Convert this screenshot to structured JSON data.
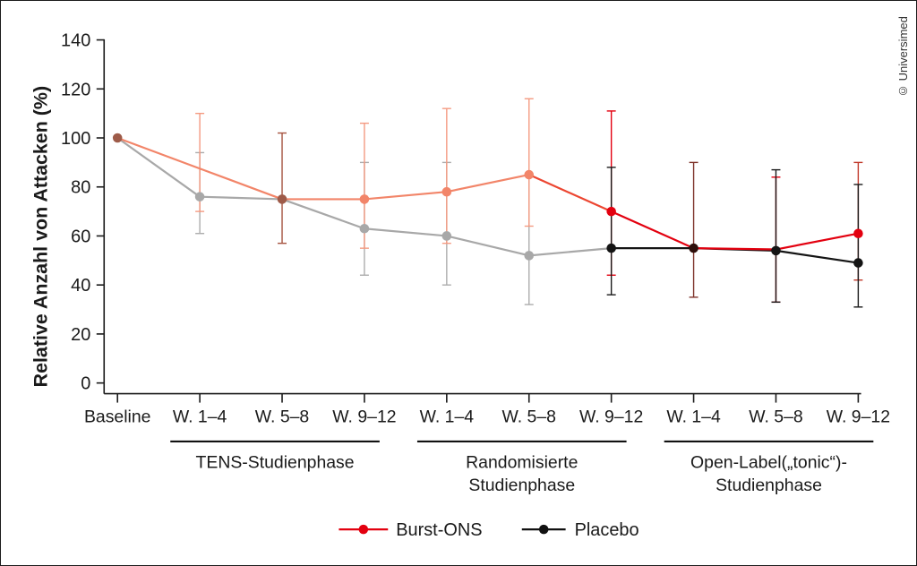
{
  "frame": {
    "copyright": "© Universimed",
    "background": "#ffffff",
    "border_color": "#1c1c1c"
  },
  "chart_data": {
    "type": "line",
    "title": "",
    "ylabel": "Relative Anzahl von Attacken (%)",
    "xlabel": "",
    "ylim": [
      0,
      140
    ],
    "yticks": [
      0,
      20,
      40,
      60,
      80,
      100,
      120,
      140
    ],
    "grid": false,
    "legend_position": "bottom",
    "axis_color": "#1a1a1a",
    "categories": [
      "Baseline",
      "W. 1–4",
      "W. 5–8",
      "W. 9–12",
      "W. 1–4",
      "W. 5–8",
      "W. 9–12",
      "W. 1–4",
      "W. 5–8",
      "W. 9–12"
    ],
    "phases": [
      {
        "label_lines": [
          "TENS-Studienphase"
        ],
        "from": 1,
        "to": 3
      },
      {
        "label_lines": [
          "Randomisierte",
          "Studienphase"
        ],
        "from": 4,
        "to": 6
      },
      {
        "label_lines": [
          "Open-Label(„tonic“)-",
          "Studienphase"
        ],
        "from": 7,
        "to": 9
      }
    ],
    "series": [
      {
        "name": "Burst-ONS",
        "legend_color": "#e3000f",
        "values": [
          100,
          87.5,
          75,
          75,
          78,
          85,
          70,
          55,
          54.5,
          61
        ],
        "err_low": [
          null,
          70,
          57,
          55,
          57,
          64,
          44,
          35,
          33,
          42
        ],
        "err_high": [
          null,
          110,
          102,
          106,
          112,
          116,
          111,
          90,
          84,
          90
        ],
        "marker_colors": [
          "#9e5b49",
          null,
          "#9e5b49",
          "#f28569",
          "#f28569",
          "#f28569",
          "#e3000f",
          null,
          null,
          "#e3000f"
        ],
        "err_colors": [
          null,
          "#f49a81",
          "#a5523e",
          "#f49a81",
          "#f49a81",
          "#f49a81",
          "#e3000f",
          "#7e332a",
          "#e3000f",
          "#c1392b"
        ],
        "segment_colors": [
          "#f28569",
          "#f28569",
          "#f28569",
          "#f28569",
          "#f28569",
          "#ec4631",
          "#e3000f",
          "#e3000f",
          "#e3000f"
        ]
      },
      {
        "name": "Placebo",
        "legend_color": "#111111",
        "values": [
          100,
          76,
          75,
          63,
          60,
          52,
          55,
          55,
          54,
          49
        ],
        "err_low": [
          null,
          61,
          null,
          44,
          40,
          32,
          36,
          null,
          33,
          31
        ],
        "err_high": [
          null,
          94,
          null,
          90,
          90,
          85,
          88,
          null,
          87,
          81
        ],
        "marker_colors": [
          null,
          "#a8a8a8",
          null,
          "#a8a8a8",
          "#a8a8a8",
          "#a8a8a8",
          "#141414",
          "#2e0f0b",
          "#141414",
          "#141414"
        ],
        "err_colors": [
          null,
          "#acacac",
          null,
          "#acacac",
          "#acacac",
          "#acacac",
          "#1a1a1a",
          null,
          "#1a1a1a",
          "#1a1a1a"
        ],
        "segment_colors": [
          "#a8a8a8",
          "#a8a8a8",
          "#a8a8a8",
          "#a8a8a8",
          "#a8a8a8",
          "#a8a8a8",
          "#141414",
          "#141414",
          "#141414"
        ]
      }
    ]
  }
}
